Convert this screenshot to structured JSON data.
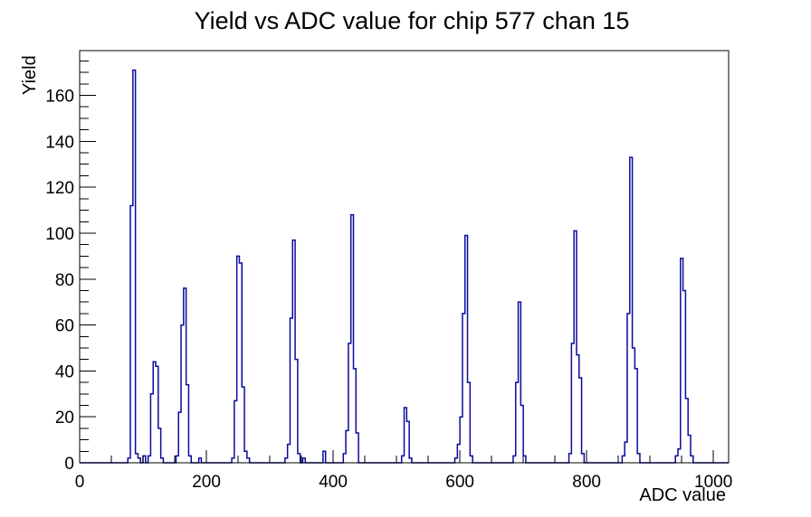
{
  "chart_data": {
    "type": "bar",
    "subtype": "root-histogram-outline",
    "title": "Yield vs ADC value for chip 577 chan 15",
    "xlabel": "ADC value",
    "ylabel": "Yield",
    "xlim": [
      0,
      1024
    ],
    "ylim": [
      0,
      179.5
    ],
    "x_major_ticks": [
      0,
      200,
      400,
      600,
      800,
      1000
    ],
    "x_minor_step": 50,
    "y_major_ticks": [
      0,
      20,
      40,
      60,
      80,
      100,
      120,
      140,
      160
    ],
    "y_minor_step": 5,
    "grid": "off",
    "legend": "none",
    "line_color": "#0a0aa0",
    "frame_color": "#000000",
    "background_color": "#ffffff",
    "bin_width": 4,
    "bins": [
      [
        76,
        2
      ],
      [
        80,
        112
      ],
      [
        84,
        171
      ],
      [
        88,
        4
      ],
      [
        92,
        2
      ],
      [
        100,
        3
      ],
      [
        108,
        3
      ],
      [
        112,
        30
      ],
      [
        116,
        44
      ],
      [
        120,
        42
      ],
      [
        124,
        15
      ],
      [
        128,
        2
      ],
      [
        152,
        3
      ],
      [
        156,
        22
      ],
      [
        160,
        60
      ],
      [
        164,
        76
      ],
      [
        168,
        34
      ],
      [
        172,
        3
      ],
      [
        188,
        2
      ],
      [
        240,
        2
      ],
      [
        244,
        27
      ],
      [
        248,
        90
      ],
      [
        252,
        87
      ],
      [
        256,
        33
      ],
      [
        260,
        5
      ],
      [
        264,
        2
      ],
      [
        324,
        2
      ],
      [
        328,
        8
      ],
      [
        332,
        63
      ],
      [
        336,
        97
      ],
      [
        340,
        45
      ],
      [
        344,
        4
      ],
      [
        352,
        2
      ],
      [
        384,
        5
      ],
      [
        416,
        4
      ],
      [
        420,
        14
      ],
      [
        424,
        52
      ],
      [
        428,
        108
      ],
      [
        432,
        41
      ],
      [
        436,
        13
      ],
      [
        508,
        3
      ],
      [
        512,
        24
      ],
      [
        516,
        18
      ],
      [
        520,
        2
      ],
      [
        592,
        2
      ],
      [
        596,
        8
      ],
      [
        600,
        20
      ],
      [
        604,
        65
      ],
      [
        608,
        99
      ],
      [
        612,
        35
      ],
      [
        616,
        3
      ],
      [
        684,
        3
      ],
      [
        688,
        35
      ],
      [
        692,
        70
      ],
      [
        696,
        25
      ],
      [
        700,
        3
      ],
      [
        772,
        4
      ],
      [
        776,
        52
      ],
      [
        780,
        101
      ],
      [
        784,
        47
      ],
      [
        788,
        37
      ],
      [
        792,
        4
      ],
      [
        856,
        3
      ],
      [
        860,
        9
      ],
      [
        864,
        65
      ],
      [
        868,
        133
      ],
      [
        872,
        50
      ],
      [
        876,
        41
      ],
      [
        880,
        4
      ],
      [
        940,
        3
      ],
      [
        944,
        6
      ],
      [
        948,
        89
      ],
      [
        952,
        75
      ],
      [
        956,
        28
      ],
      [
        960,
        12
      ],
      [
        964,
        3
      ]
    ]
  }
}
